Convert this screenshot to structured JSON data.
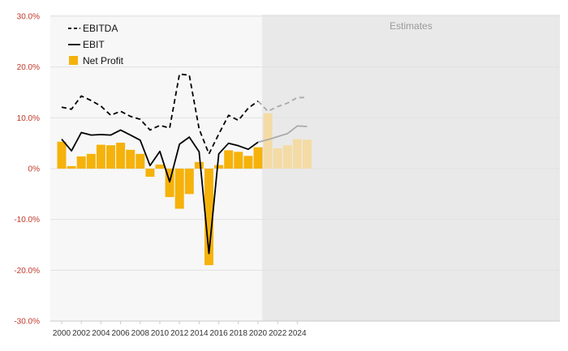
{
  "chart_data": {
    "type": "bar",
    "ylim": [
      -30,
      30
    ],
    "yticks": [
      {
        "value": 30,
        "label": "30.0%"
      },
      {
        "value": 20,
        "label": "20.0%"
      },
      {
        "value": 10,
        "label": "10.0%"
      },
      {
        "value": 0,
        "label": "0%"
      },
      {
        "value": -10,
        "label": "-10.0%"
      },
      {
        "value": -20,
        "label": "-20.0%"
      },
      {
        "value": -30,
        "label": "-30.0%"
      }
    ],
    "xtick_labels": [
      "2000",
      "2002",
      "2004",
      "2006",
      "2008",
      "2010",
      "2012",
      "2014",
      "2016",
      "2018",
      "2020",
      "2022",
      "2024"
    ],
    "years": [
      2000,
      2001,
      2002,
      2003,
      2004,
      2005,
      2006,
      2007,
      2008,
      2009,
      2010,
      2011,
      2012,
      2013,
      2014,
      2015,
      2016,
      2017,
      2018,
      2019,
      2020,
      2021,
      2022,
      2023,
      2024,
      2025
    ],
    "estimates_from": 2021,
    "estimates_label": "Estimates",
    "grid": true,
    "legend_position": "top-left",
    "series": [
      {
        "name": "EBITDA",
        "kind": "line-dashed",
        "color": "#000000",
        "estimate_color": "#aaaaaa",
        "values": [
          12.1,
          11.7,
          14.3,
          13.4,
          12.3,
          10.5,
          11.3,
          10.3,
          9.7,
          7.6,
          8.5,
          8.0,
          18.6,
          18.4,
          7.8,
          2.9,
          6.8,
          10.5,
          9.5,
          11.9,
          13.3,
          11.3,
          12.2,
          12.9,
          14.0,
          14.0
        ]
      },
      {
        "name": "EBIT",
        "kind": "line",
        "color": "#000000",
        "estimate_color": "#aaaaaa",
        "values": [
          5.8,
          3.5,
          7.1,
          6.6,
          6.7,
          6.6,
          7.6,
          6.6,
          5.6,
          0.6,
          3.4,
          -2.6,
          4.8,
          6.2,
          3.3,
          -16.7,
          2.9,
          5.0,
          4.5,
          3.8,
          5.2,
          5.7,
          6.3,
          6.9,
          8.4,
          8.3
        ]
      },
      {
        "name": "Net Profit",
        "kind": "bar",
        "color": "#f5b20a",
        "estimate_color": "#f4dba5",
        "values": [
          5.3,
          0.5,
          2.4,
          2.9,
          4.7,
          4.6,
          5.1,
          3.7,
          2.9,
          -1.6,
          0.8,
          -5.6,
          -7.9,
          -5.0,
          1.3,
          -19.0,
          0.7,
          3.6,
          3.3,
          2.5,
          4.2,
          10.9,
          4.0,
          4.6,
          5.8,
          5.7
        ]
      }
    ]
  }
}
